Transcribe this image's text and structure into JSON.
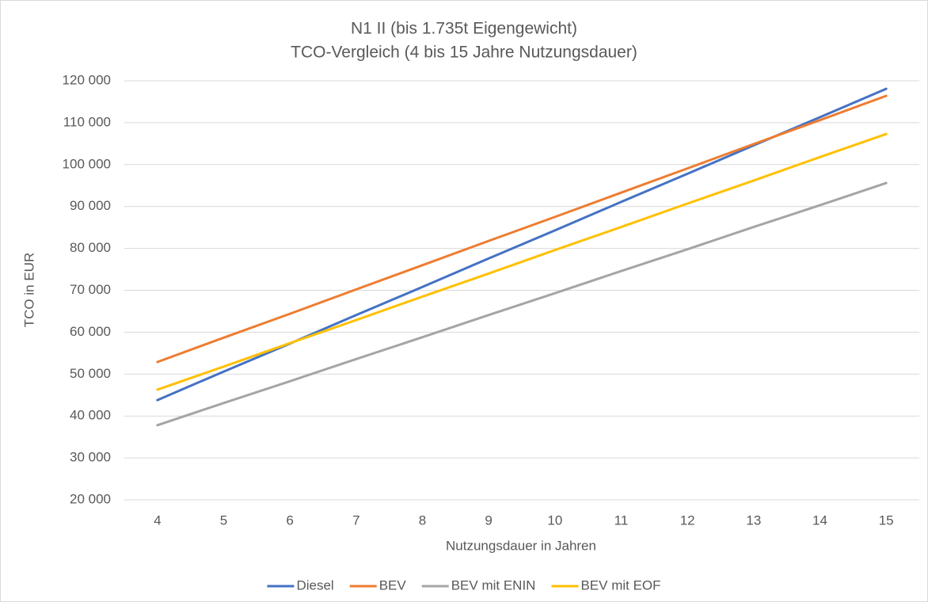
{
  "chart_data": {
    "type": "line",
    "title": "N1 II (bis 1.735t Eigengewicht)",
    "subtitle": "TCO-Vergleich (4 bis 15 Jahre Nutzungsdauer)",
    "x_label": "Nutzungsdauer  in Jahren",
    "y_label": "TCO in EUR",
    "categories": [
      "4",
      "5",
      "6",
      "7",
      "8",
      "9",
      "10",
      "11",
      "12",
      "13",
      "14",
      "15"
    ],
    "series": [
      {
        "name": "Diesel",
        "color": "#4472c4",
        "values": [
          43800,
          50600,
          57300,
          64100,
          70800,
          77600,
          84300,
          91100,
          97800,
          104600,
          111300,
          118100
        ]
      },
      {
        "name": "BEV",
        "color": "#ed7d31",
        "values": [
          52900,
          58700,
          64400,
          70200,
          76000,
          81800,
          87500,
          93300,
          99100,
          104900,
          110600,
          116400
        ]
      },
      {
        "name": "BEV mit ENIN",
        "color": "#a5a5a5",
        "values": [
          37800,
          43100,
          48300,
          53600,
          58800,
          64100,
          69300,
          74600,
          79800,
          85100,
          90300,
          95600
        ]
      },
      {
        "name": "BEV mit EOF",
        "color": "#ffc000",
        "values": [
          46300,
          51800,
          57400,
          62900,
          68500,
          74000,
          79600,
          85100,
          90700,
          96200,
          101800,
          107300
        ]
      }
    ],
    "ylim": [
      20000,
      120000
    ],
    "yticks": [
      {
        "value": 20000,
        "label": "20 000"
      },
      {
        "value": 30000,
        "label": "30 000"
      },
      {
        "value": 40000,
        "label": "40 000"
      },
      {
        "value": 50000,
        "label": "50 000"
      },
      {
        "value": 60000,
        "label": "60 000"
      },
      {
        "value": 70000,
        "label": "70 000"
      },
      {
        "value": 80000,
        "label": "80 000"
      },
      {
        "value": 90000,
        "label": "90 000"
      },
      {
        "value": 100000,
        "label": "100 000"
      },
      {
        "value": 110000,
        "label": "110 000"
      },
      {
        "value": 120000,
        "label": "120 000"
      }
    ],
    "grid": true,
    "legend": "bottom"
  }
}
